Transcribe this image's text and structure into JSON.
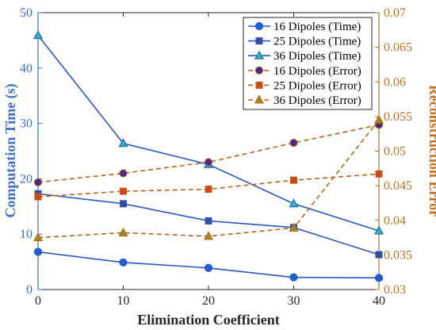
{
  "chart_data": {
    "type": "line",
    "x": [
      0,
      10,
      20,
      30,
      40
    ],
    "xlabel": "Elimination Coefficient",
    "ylabel_left": "Computation Time (s)",
    "ylabel_right": "Reconstruction Error",
    "xlim": [
      0,
      40
    ],
    "ylim_left": [
      0,
      50
    ],
    "ylim_right": [
      0.03,
      0.07
    ],
    "xticks": [
      "0",
      "10",
      "20",
      "30",
      "40"
    ],
    "yticks_left": [
      "0",
      "10",
      "20",
      "30",
      "40",
      "50"
    ],
    "yticks_right": [
      "0.03",
      "0.035",
      "0.04",
      "0.045",
      "0.05",
      "0.055",
      "0.06",
      "0.065",
      "0.07"
    ],
    "grid": false,
    "legend_position": "top-right",
    "colors": {
      "time_line": "#2a56c6",
      "error_line": "#b8631a",
      "left_axis": "#3b6fc9",
      "right_axis": "#c0701f",
      "time_16_marker": "#1f5fd6",
      "time_25_marker": "#3a4a9a",
      "time_36_marker": "#25b8b0",
      "err_16_marker": "#4a2a8c",
      "err_25_marker": "#d84315",
      "err_36_marker": "#a08a1c"
    },
    "series": [
      {
        "name": "16 Dipoles (Time)",
        "axis": "left",
        "style": "solid",
        "marker": "circle",
        "values": [
          6.8,
          4.9,
          3.9,
          2.2,
          2.1
        ]
      },
      {
        "name": "25 Dipoles (Time)",
        "axis": "left",
        "style": "solid",
        "marker": "square",
        "values": [
          17.3,
          15.5,
          12.4,
          11.2,
          6.3
        ]
      },
      {
        "name": "36 Dipoles (Time)",
        "axis": "left",
        "style": "solid",
        "marker": "triangle",
        "values": [
          45.9,
          26.4,
          22.6,
          15.5,
          10.6
        ]
      },
      {
        "name": "16 Dipoles (Error)",
        "axis": "right",
        "style": "dashed",
        "marker": "circle",
        "values": [
          0.0455,
          0.0468,
          0.0484,
          0.0512,
          0.0538
        ]
      },
      {
        "name": "25 Dipoles (Error)",
        "axis": "right",
        "style": "dashed",
        "marker": "square",
        "values": [
          0.0434,
          0.0442,
          0.0445,
          0.0458,
          0.0467
        ]
      },
      {
        "name": "36 Dipoles (Error)",
        "axis": "right",
        "style": "dashed",
        "marker": "triangle",
        "values": [
          0.0375,
          0.0382,
          0.0377,
          0.0389,
          0.0545
        ]
      }
    ]
  }
}
